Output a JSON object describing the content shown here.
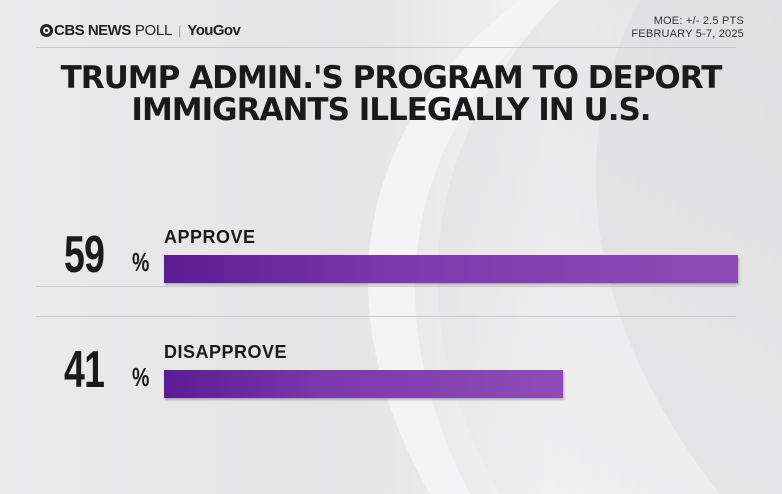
{
  "header": {
    "brand_cbs": "CBS NEWS",
    "brand_poll": "POLL",
    "brand_separator": "|",
    "brand_yougov": "YouGov",
    "moe": "MOE: +/- 2.5 PTS",
    "dates": "FEBRUARY 5-7, 2025"
  },
  "title": {
    "line1": "TRUMP ADMIN.'S PROGRAM TO DEPORT",
    "line2": "IMMIGRANTS ILLEGALLY IN U.S."
  },
  "colors": {
    "bar": "#7c38ad",
    "background": "#e9e9ea",
    "text": "#1a1a1a"
  },
  "chart_data": {
    "type": "bar",
    "orientation": "horizontal",
    "categories": [
      "APPROVE",
      "DISAPPROVE"
    ],
    "values": [
      59,
      41
    ],
    "unit": "%",
    "value_labels": [
      "59",
      "41"
    ],
    "title": "TRUMP ADMIN.'S PROGRAM TO DEPORT IMMIGRANTS ILLEGALLY IN U.S.",
    "xlim": [
      0,
      59
    ],
    "grid": false
  }
}
